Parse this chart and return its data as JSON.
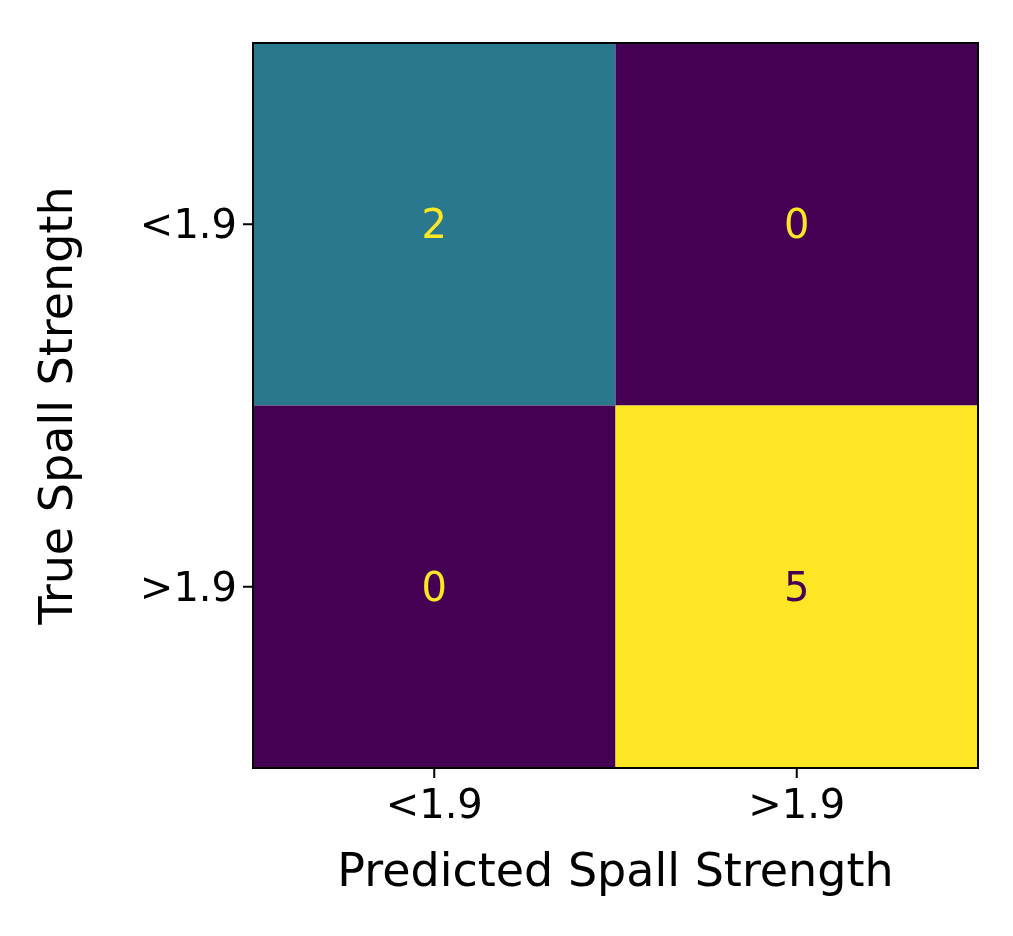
{
  "chart_data": {
    "type": "heatmap",
    "xlabel": "Predicted Spall Strength",
    "ylabel": "True Spall Strength",
    "categories": [
      "<1.9",
      ">1.9"
    ],
    "y_categories": [
      "<1.9",
      ">1.9"
    ],
    "cells": [
      [
        2,
        0
      ],
      [
        0,
        5
      ]
    ],
    "data_labels": true
  }
}
